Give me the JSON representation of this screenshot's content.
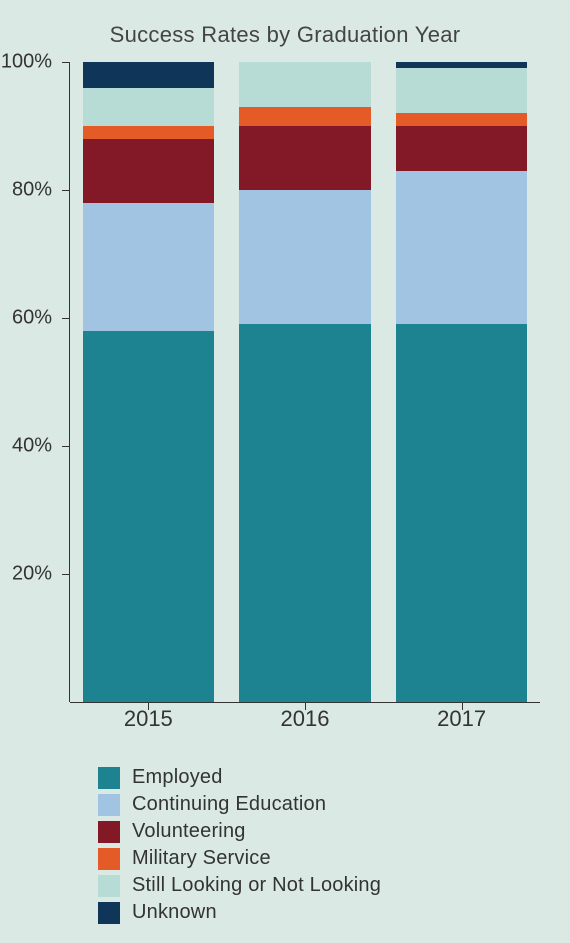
{
  "chart": {
    "type": "stacked-bar",
    "title": "Success Rates by Graduation Year",
    "title_fontsize": 22,
    "background_color": "#dbe9e5",
    "text_color": "#333333",
    "categories": [
      "2015",
      "2016",
      "2017"
    ],
    "x_label_fontsize": 22,
    "series": [
      {
        "name": "Employed",
        "color": "#1d8391",
        "values": [
          58,
          59,
          59
        ]
      },
      {
        "name": "Continuing Education",
        "color": "#a0c4e1",
        "values": [
          20,
          21,
          24
        ]
      },
      {
        "name": "Volunteering",
        "color": "#831826",
        "values": [
          10,
          10,
          7
        ]
      },
      {
        "name": "Military Service",
        "color": "#e55b27",
        "values": [
          2,
          3,
          2
        ]
      },
      {
        "name": "Still Looking or Not Looking",
        "color": "#b7dcd5",
        "values": [
          6,
          7,
          7
        ]
      },
      {
        "name": "Unknown",
        "color": "#0f3559",
        "values": [
          4,
          0,
          1
        ]
      }
    ],
    "y_axis": {
      "min": 0,
      "max": 100,
      "ticks": [
        20,
        40,
        60,
        80,
        100
      ],
      "tick_format_suffix": "%",
      "label_fontsize": 20
    },
    "legend": {
      "fontsize": 20,
      "swatch_size": 22
    },
    "bar_width_pct": 28
  }
}
